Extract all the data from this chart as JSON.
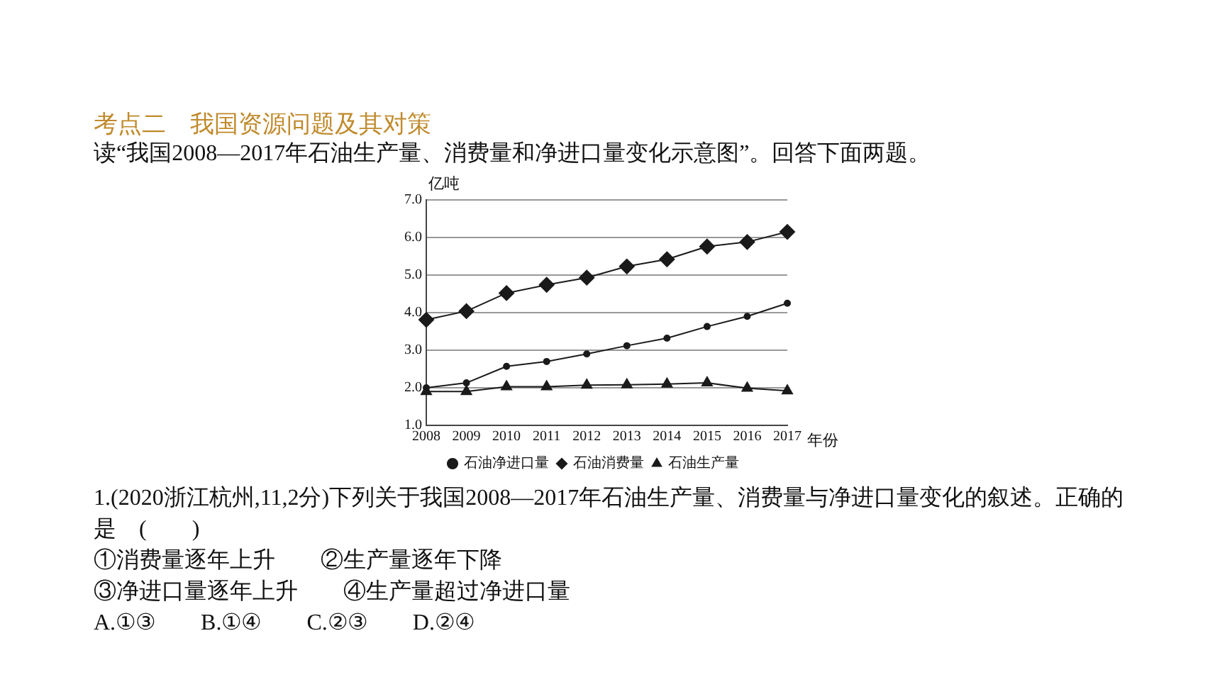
{
  "chart_data": {
    "type": "line",
    "title": "考点二　我国资源问题及其对策",
    "subtitle": "读“我国2008—2017年石油生产量、消费量和净进口量变化示意图”。回答下面两题。",
    "xlabel": "年份",
    "ylabel": "亿吨",
    "categories": [
      "2008",
      "2009",
      "2010",
      "2011",
      "2012",
      "2013",
      "2014",
      "2015",
      "2016",
      "2017"
    ],
    "series": [
      {
        "name": "石油生产量",
        "color": "#1a1a1a",
        "marker": "triangle",
        "values": [
          1.9,
          1.9,
          2.03,
          2.03,
          2.07,
          2.08,
          2.1,
          2.13,
          1.99,
          1.92
        ]
      },
      {
        "name": "石油消费量",
        "color": "#1a1a1a",
        "marker": "diamond",
        "values": [
          3.81,
          4.04,
          4.52,
          4.74,
          4.93,
          5.23,
          5.42,
          5.76,
          5.88,
          6.15
        ]
      },
      {
        "name": "石油净进口量",
        "color": "#1a1a1a",
        "marker": "circle",
        "values": [
          2.0,
          2.13,
          2.57,
          2.7,
          2.9,
          3.12,
          3.32,
          3.63,
          3.9,
          4.25
        ]
      }
    ],
    "ylim": [
      1,
      7
    ],
    "yticks": [
      {
        "value": 1,
        "label": "1.0"
      },
      {
        "value": 2,
        "label": "2.0"
      },
      {
        "value": 3,
        "label": "3.0"
      },
      {
        "value": 4,
        "label": "4.0"
      },
      {
        "value": 5,
        "label": "5.0"
      },
      {
        "value": 6,
        "label": "6.0"
      },
      {
        "value": 7,
        "label": "7.0"
      }
    ],
    "grid": "y",
    "legend": "bottom",
    "line_style": "solid",
    "annotations": [
      "1.(2020浙江杭州,11,2分)下列关于我国2008—2017年石油生产量、消费量与净进口量变化的叙述。正确的是　(　　)",
      "①消费量逐年上升　　②生产量逐年下降",
      "③净进口量逐年上升　　④生产量超过净进口量",
      "A.①③　　B.①④　　C.②③　　D.②④"
    ]
  }
}
